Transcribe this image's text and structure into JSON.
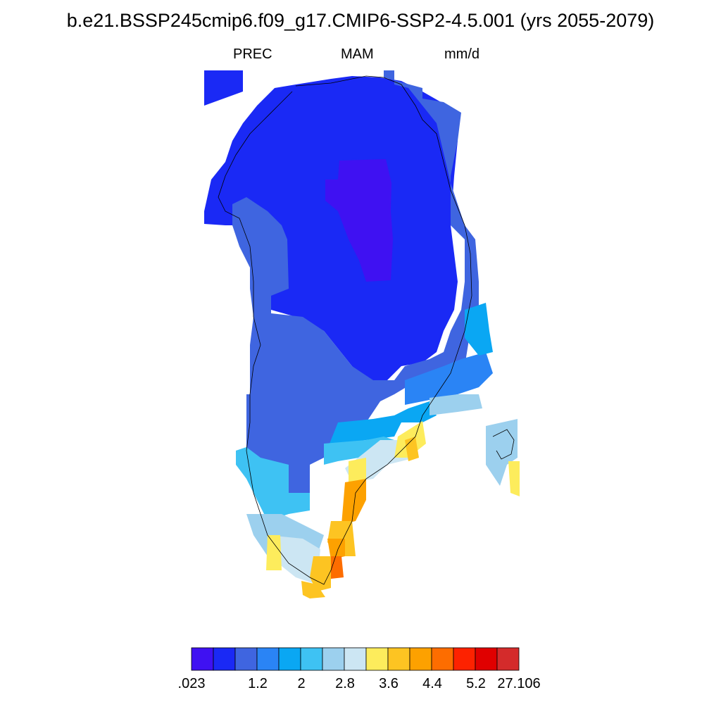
{
  "title": "b.e21.BSSP245cmip6.f09_g17.CMIP6-SSP2-4.5.001 (yrs 2055-2079)",
  "subtitle": {
    "left": "PREC",
    "center": "MAM",
    "right": "mm/d"
  },
  "colorbar": {
    "colors": [
      "#3f11f2",
      "#1a29f5",
      "#3f65e0",
      "#2a84f5",
      "#0aa7f3",
      "#3ec2f3",
      "#9cd0ee",
      "#cce6f3",
      "#fdec5c",
      "#fdc422",
      "#fda100",
      "#fd6d00",
      "#fd2200",
      "#e00000",
      "#d42b2b"
    ],
    "labels": [
      ".023",
      "1.2",
      "2",
      "2.8",
      "3.6",
      "4.4",
      "5.2",
      "27.106"
    ]
  },
  "legend_colors": {
    "c0": "#3f11f2",
    "c1": "#1a29f5",
    "c2": "#3f65e0",
    "c3": "#2a84f5",
    "c4": "#0aa7f3",
    "c5": "#3ec2f3",
    "c6": "#9cd0ee",
    "c7": "#cce6f3",
    "c8": "#fdec5c",
    "c9": "#fdc422",
    "c10": "#fda100",
    "c11": "#fd6d00"
  }
}
